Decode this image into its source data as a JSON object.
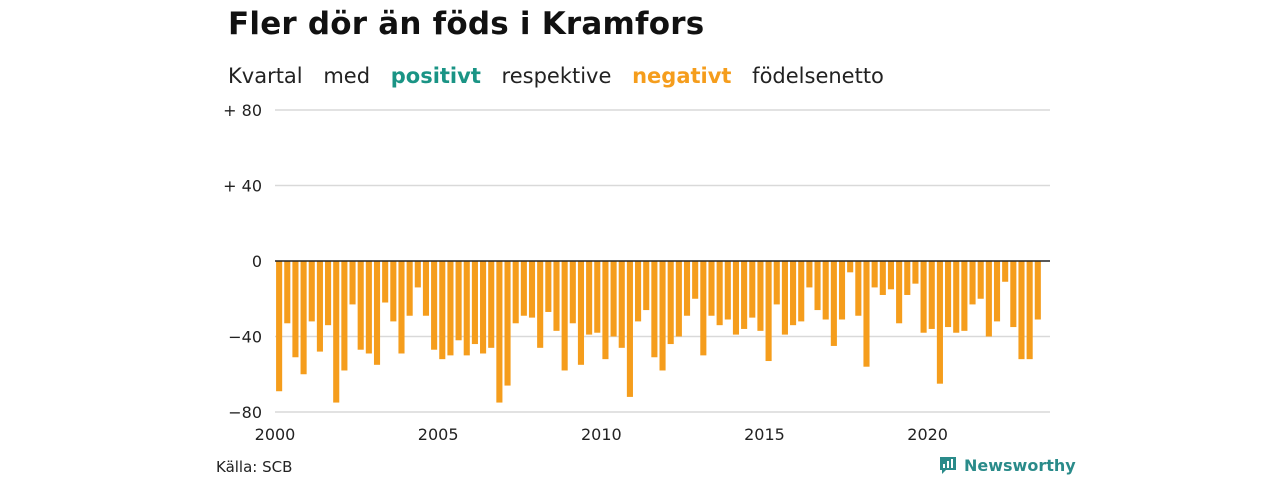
{
  "title": "Fler dör än föds i Kramfors",
  "subtitle": {
    "lead": "Kvartal",
    "with": "med",
    "positive": "positivt",
    "between": "respektive",
    "negative": "negativt",
    "tail": "födelsenetto"
  },
  "source": "Källa: SCB",
  "brand": "Newsworthy",
  "colors": {
    "positive": "#1a9485",
    "negative": "#f59d1c",
    "grid": "#d9d9d9",
    "zero_line": "#222222",
    "brand": "#2a8b8a"
  },
  "chart_data": {
    "type": "bar",
    "x_start": 2000,
    "x_step": 0.25,
    "y_ticks": [
      "+ 80",
      "+ 40",
      "0",
      "−40",
      "−80"
    ],
    "y_tick_values": [
      80,
      40,
      0,
      -40,
      -80
    ],
    "x_ticks": [
      "2000",
      "2005",
      "2010",
      "2015",
      "2020"
    ],
    "x_tick_values": [
      2000,
      2005,
      2010,
      2015,
      2020
    ],
    "ylim": [
      -80,
      80
    ],
    "xlim": [
      2000,
      2023.75
    ],
    "values": [
      -69,
      -33,
      -51,
      -60,
      -32,
      -48,
      -34,
      -75,
      -58,
      -23,
      -47,
      -49,
      -55,
      -22,
      -32,
      -49,
      -29,
      -14,
      -29,
      -47,
      -52,
      -50,
      -42,
      -50,
      -44,
      -49,
      -46,
      -75,
      -66,
      -33,
      -29,
      -30,
      -46,
      -27,
      -37,
      -58,
      -33,
      -55,
      -39,
      -38,
      -52,
      -40,
      -46,
      -72,
      -32,
      -26,
      -51,
      -58,
      -44,
      -40,
      -29,
      -20,
      -50,
      -29,
      -34,
      -31,
      -39,
      -36,
      -30,
      -37,
      -53,
      -23,
      -39,
      -34,
      -32,
      -14,
      -26,
      -31,
      -45,
      -31,
      -6,
      -29,
      -56,
      -14,
      -18,
      -15,
      -33,
      -18,
      -12,
      -38,
      -36,
      -65,
      -35,
      -38,
      -37,
      -23,
      -20,
      -40,
      -32,
      -11,
      -35,
      -52,
      -52,
      -31
    ]
  }
}
